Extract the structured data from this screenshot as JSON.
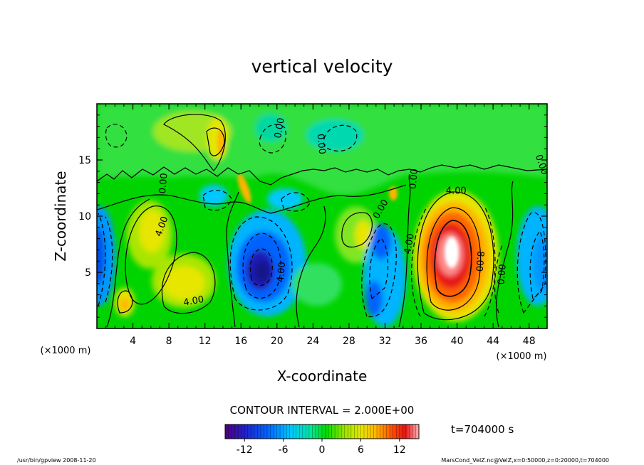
{
  "chart_data": {
    "type": "heatmap",
    "title": "vertical velocity",
    "xlabel": "X-coordinate",
    "ylabel": "Z-coordinate",
    "x_unit": "(×1000 m)",
    "z_unit": "(×1000 m)",
    "xlim": [
      0,
      50
    ],
    "ylim": [
      0,
      20
    ],
    "x_ticks": [
      4,
      8,
      12,
      16,
      20,
      24,
      28,
      32,
      36,
      40,
      44,
      48
    ],
    "y_ticks": [
      5,
      10,
      15
    ],
    "contour_interval_text": "CONTOUR INTERVAL = 2.000E+00",
    "time_text": "t=704000 s",
    "colorbar": {
      "range": [
        -15,
        15
      ],
      "ticks": [
        -12,
        -6,
        0,
        6,
        12
      ]
    },
    "contour_labels": [
      {
        "text": "4.00",
        "x": 7.5,
        "z": 9.0,
        "rotate": -70
      },
      {
        "text": "4.00",
        "x": 10.8,
        "z": 2.2,
        "rotate": -10
      },
      {
        "text": "0.00",
        "x": 7.7,
        "z": 12.9,
        "rotate": -85
      },
      {
        "text": "0.00",
        "x": 20.6,
        "z": 17.8,
        "rotate": -80
      },
      {
        "text": "0.00",
        "x": 24.6,
        "z": 16.4,
        "rotate": 85
      },
      {
        "text": "4.00",
        "x": 20.8,
        "z": 5.0,
        "rotate": -85
      },
      {
        "text": "0.00",
        "x": 31.8,
        "z": 10.5,
        "rotate": -60
      },
      {
        "text": "4.00",
        "x": 35.0,
        "z": 7.5,
        "rotate": -80
      },
      {
        "text": "0.00",
        "x": 35.5,
        "z": 13.3,
        "rotate": -85
      },
      {
        "text": "4.00",
        "x": 39.9,
        "z": 12.0,
        "rotate": 0
      },
      {
        "text": "8.00",
        "x": 42.2,
        "z": 6.0,
        "rotate": 95
      },
      {
        "text": "0.00",
        "x": 45.3,
        "z": 4.8,
        "rotate": -85
      },
      {
        "text": "0.00",
        "x": 49.1,
        "z": 14.5,
        "rotate": 70
      }
    ]
  },
  "footer": {
    "left": "/usr/bin/gpview   2008-11-20",
    "right": "MarsCond_VelZ.nc@VelZ,x=0:50000,z=0:20000,t=704000"
  },
  "colors": {
    "background": "#00c800",
    "positive_ramp": [
      "#00e000",
      "#5ae600",
      "#a8e800",
      "#e6e600",
      "#ffb400",
      "#ff6400",
      "#e61400",
      "#ff8c8c",
      "#ffffff"
    ],
    "negative_ramp": [
      "#00e000",
      "#00e6a0",
      "#00c8ff",
      "#0096ff",
      "#0050e6",
      "#1414a0"
    ]
  }
}
